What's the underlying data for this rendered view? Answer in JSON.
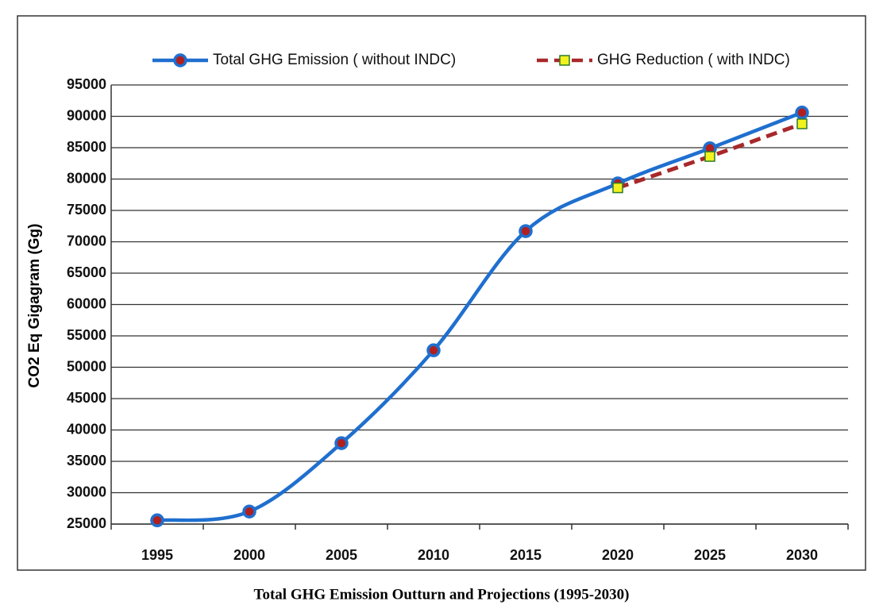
{
  "chart_data": {
    "type": "line",
    "title": "Total GHG Emission Outturn and Projections (1995-2030)",
    "y_label": "CO2 Eq Gigagram (Gg)",
    "categories": [
      "1995",
      "2000",
      "2005",
      "2010",
      "2015",
      "2020",
      "2025",
      "2030"
    ],
    "series": [
      {
        "name": "Total GHG Emission ( without INDC)",
        "color": "#1f6fcf",
        "smooth": true,
        "marker": "circle",
        "values": [
          25600,
          27000,
          37900,
          52700,
          71700,
          79300,
          84900,
          90600
        ]
      },
      {
        "name": "GHG Reduction ( with INDC)",
        "color": "#a8282a",
        "smooth": false,
        "dashed": true,
        "marker": "square",
        "values": [
          null,
          null,
          null,
          null,
          null,
          78600,
          83600,
          88800
        ]
      }
    ],
    "ylim": [
      25000,
      95000
    ],
    "yticks": [
      25000,
      30000,
      35000,
      40000,
      45000,
      50000,
      55000,
      60000,
      65000,
      70000,
      75000,
      80000,
      85000,
      90000,
      95000
    ],
    "grid": true,
    "legend": "top"
  }
}
